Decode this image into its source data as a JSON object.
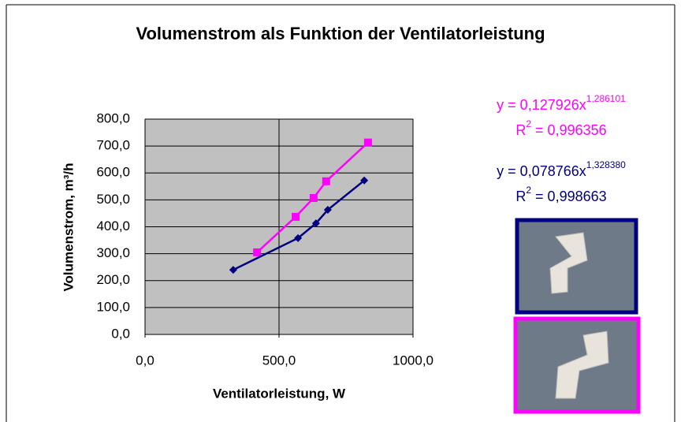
{
  "chart_data": {
    "type": "scatter",
    "title": "Volumenstrom als Funktion der Ventilatorleistung",
    "x_label": "Ventilatorleistung, W",
    "y_label": "Volumenstrom, m³/h",
    "xlim": [
      0,
      1000
    ],
    "xticks": [
      {
        "value": 0,
        "label": "0,0"
      },
      {
        "value": 500,
        "label": "500,0"
      },
      {
        "value": 1000,
        "label": "1000,0"
      }
    ],
    "ylim": [
      0,
      800
    ],
    "yticks": [
      {
        "value": 0,
        "label": "0,0"
      },
      {
        "value": 100,
        "label": "100,0"
      },
      {
        "value": 200,
        "label": "200,0"
      },
      {
        "value": 300,
        "label": "300,0"
      },
      {
        "value": 400,
        "label": "400,0"
      },
      {
        "value": 500,
        "label": "500,0"
      },
      {
        "value": 600,
        "label": "600,0"
      },
      {
        "value": 700,
        "label": "700,0"
      },
      {
        "value": 800,
        "label": "800,0"
      }
    ],
    "grid": true,
    "series": [
      {
        "color": "#ff00ff",
        "marker": "square",
        "x": [
          418,
          562,
          629,
          676,
          832
        ],
        "values": [
          305,
          437,
          507,
          569,
          713
        ]
      },
      {
        "color": "#000080",
        "marker": "diamond",
        "x": [
          329,
          571,
          638,
          682,
          818
        ],
        "values": [
          240,
          358,
          413,
          463,
          572
        ]
      }
    ],
    "annotations": [
      {
        "color": "#ff00ff",
        "text": "y = 0,127926x",
        "sup": "1,286101"
      },
      {
        "color": "#ff00ff",
        "text": "R",
        "sup": "2",
        "after": " = 0,996356"
      },
      {
        "color": "#000080",
        "text": "y = 0,078766x",
        "sup": "1,328380"
      },
      {
        "color": "#000080",
        "text": "R",
        "sup": "2",
        "after": " = 0,998663"
      }
    ]
  }
}
